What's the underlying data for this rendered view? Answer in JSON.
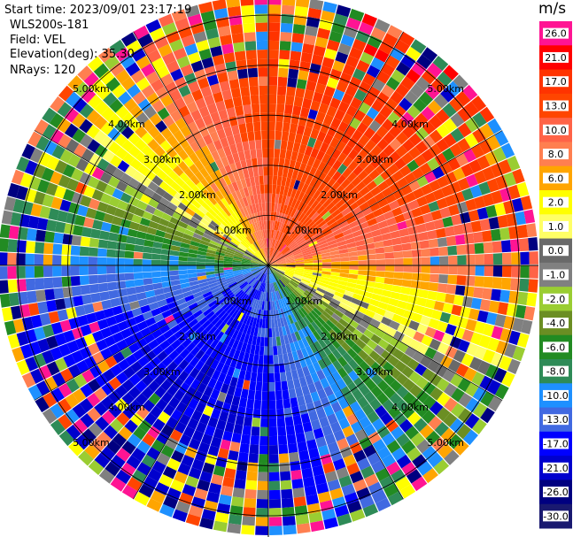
{
  "header": {
    "start_time": "Start time: 2023/09/01 23:17:19",
    "instrument": "WLS200s-181",
    "field": "Field: VEL",
    "elevation": "Elevation(deg): 35.30",
    "nrays": "NRays: 120"
  },
  "colorbar": {
    "unit": "m/s",
    "ticks": [
      "26.0",
      "21.0",
      "17.0",
      "13.0",
      "10.0",
      "8.0",
      "6.0",
      "2.0",
      "1.0",
      "0.0",
      "-1.0",
      "-2.0",
      "-4.0",
      "-6.0",
      "-8.0",
      "-10.0",
      "-13.0",
      "-17.0",
      "-21.0",
      "-26.0",
      "-30.0"
    ],
    "colors": [
      "#ff1493",
      "#ff0000",
      "#ff3300",
      "#ff4500",
      "#ff6347",
      "#ff7f50",
      "#ffa500",
      "#ffff00",
      "#ffff66",
      "#696969",
      "#808080",
      "#9acd32",
      "#6b8e23",
      "#228b22",
      "#2e8b57",
      "#1e90ff",
      "#4169e1",
      "#0000ff",
      "#0000cd",
      "#000080",
      "#191970"
    ]
  },
  "chart_data": {
    "type": "heatmap",
    "projection": "polar (PPI)",
    "field": "VEL",
    "units": "m/s",
    "n_rays": 120,
    "elevation_deg": 35.3,
    "range_rings_km": [
      1.0,
      2.0,
      3.0,
      4.0,
      5.0
    ],
    "range_ring_labels": [
      "1.00km",
      "2.00km",
      "3.00km",
      "4.00km",
      "5.00km"
    ],
    "max_range_km": 5.3,
    "velocity_pattern": {
      "amplitude_ms": 18,
      "max_velocity_azimuth_deg": 30,
      "min_velocity_azimuth_deg": 210,
      "near_zero_band_azimuths_deg": [
        120,
        300
      ]
    }
  }
}
